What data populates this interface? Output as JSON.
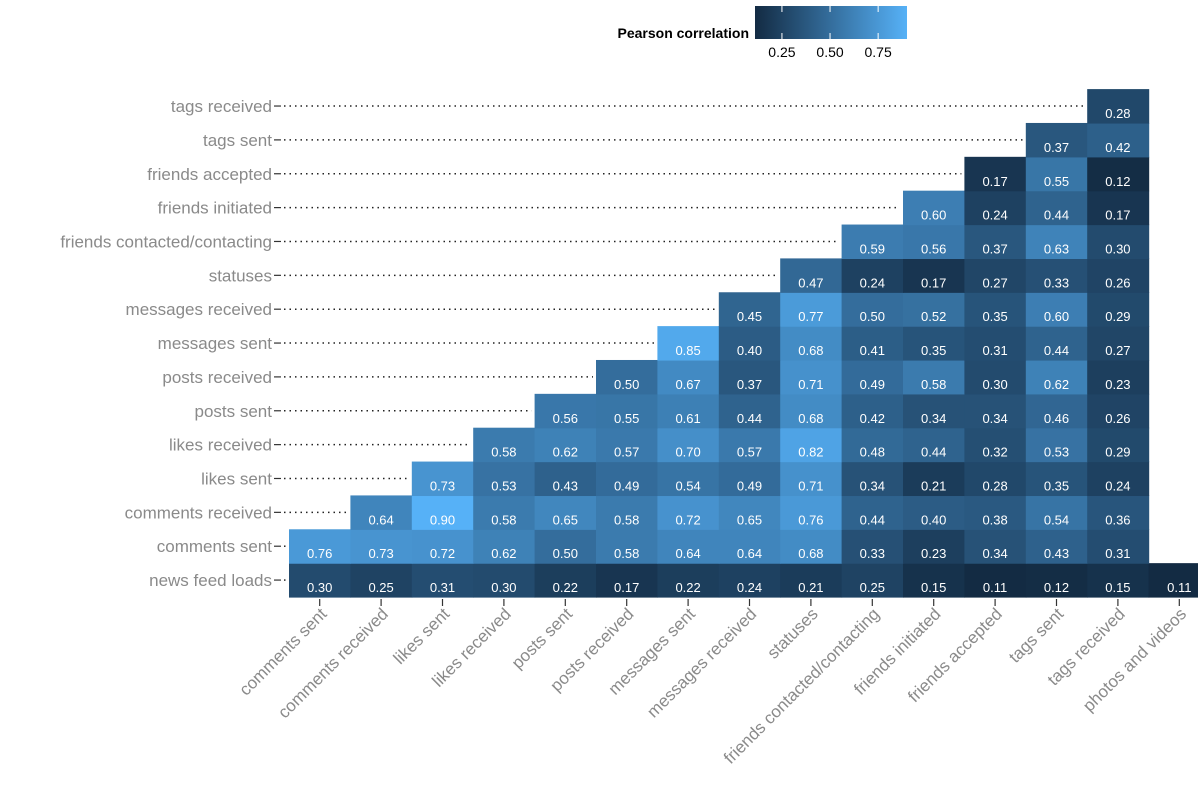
{
  "chart_data": {
    "type": "heatmap",
    "title": "",
    "xlabel": "",
    "ylabel": "",
    "colorbar": {
      "title": "Pearson correlation",
      "ticks": [
        "0.25",
        "0.50",
        "0.75"
      ],
      "tick_values": [
        0.25,
        0.5,
        0.75
      ],
      "range": [
        0.11,
        0.9
      ],
      "low_color": "#132b43",
      "high_color": "#56b1f7"
    },
    "x_categories": [
      "comments sent",
      "comments received",
      "likes sent",
      "likes received",
      "posts sent",
      "posts received",
      "messages sent",
      "messages received",
      "statuses",
      "friends contacted/contacting",
      "friends initiated",
      "friends accepted",
      "tags sent",
      "tags received",
      "photos and videos"
    ],
    "y_categories": [
      "news feed loads",
      "comments sent",
      "comments received",
      "likes sent",
      "likes received",
      "posts sent",
      "posts received",
      "messages sent",
      "messages received",
      "statuses",
      "friends contacted/contacting",
      "friends initiated",
      "friends accepted",
      "tags sent",
      "tags received"
    ],
    "rows": [
      {
        "y": "news feed loads",
        "values": [
          "0.30",
          "0.25",
          "0.31",
          "0.30",
          "0.22",
          "0.17",
          "0.22",
          "0.24",
          "0.21",
          "0.25",
          "0.15",
          "0.11",
          "0.12",
          "0.15",
          "0.11"
        ]
      },
      {
        "y": "comments sent",
        "values": [
          "0.76",
          "0.73",
          "0.72",
          "0.62",
          "0.50",
          "0.58",
          "0.64",
          "0.64",
          "0.68",
          "0.33",
          "0.23",
          "0.34",
          "0.43",
          "0.31"
        ]
      },
      {
        "y": "comments received",
        "values": [
          "0.64",
          "0.90",
          "0.58",
          "0.65",
          "0.58",
          "0.72",
          "0.65",
          "0.76",
          "0.44",
          "0.40",
          "0.38",
          "0.54",
          "0.36"
        ]
      },
      {
        "y": "likes sent",
        "values": [
          "0.73",
          "0.53",
          "0.43",
          "0.49",
          "0.54",
          "0.49",
          "0.71",
          "0.34",
          "0.21",
          "0.28",
          "0.35",
          "0.24"
        ]
      },
      {
        "y": "likes received",
        "values": [
          "0.58",
          "0.62",
          "0.57",
          "0.70",
          "0.57",
          "0.82",
          "0.48",
          "0.44",
          "0.32",
          "0.53",
          "0.29"
        ]
      },
      {
        "y": "posts sent",
        "values": [
          "0.56",
          "0.55",
          "0.61",
          "0.44",
          "0.68",
          "0.42",
          "0.34",
          "0.34",
          "0.46",
          "0.26"
        ]
      },
      {
        "y": "posts received",
        "values": [
          "0.50",
          "0.67",
          "0.37",
          "0.71",
          "0.49",
          "0.58",
          "0.30",
          "0.62",
          "0.23"
        ]
      },
      {
        "y": "messages sent",
        "values": [
          "0.85",
          "0.40",
          "0.68",
          "0.41",
          "0.35",
          "0.31",
          "0.44",
          "0.27"
        ]
      },
      {
        "y": "messages received",
        "values": [
          "0.45",
          "0.77",
          "0.50",
          "0.52",
          "0.35",
          "0.60",
          "0.29"
        ]
      },
      {
        "y": "statuses",
        "values": [
          "0.47",
          "0.24",
          "0.17",
          "0.27",
          "0.33",
          "0.26"
        ]
      },
      {
        "y": "friends contacted/contacting",
        "values": [
          "0.59",
          "0.56",
          "0.37",
          "0.63",
          "0.30"
        ]
      },
      {
        "y": "friends initiated",
        "values": [
          "0.60",
          "0.24",
          "0.44",
          "0.17"
        ]
      },
      {
        "y": "friends accepted",
        "values": [
          "0.17",
          "0.55",
          "0.12"
        ]
      },
      {
        "y": "tags sent",
        "values": [
          "0.37",
          "0.42"
        ]
      },
      {
        "y": "tags received",
        "values": [
          "0.28"
        ]
      }
    ]
  }
}
